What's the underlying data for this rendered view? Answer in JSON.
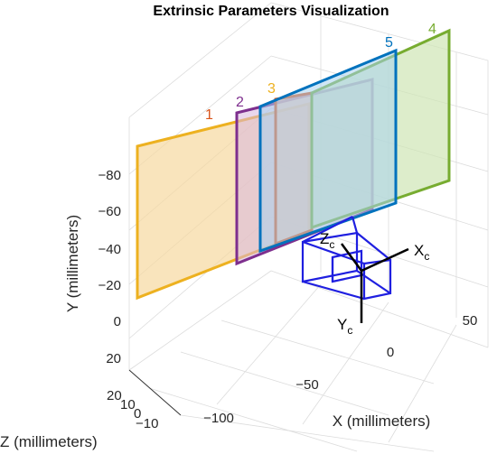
{
  "chart_data": {
    "type": "3d-plot",
    "title": "Extrinsic Parameters Visualization",
    "xlabel": "X (millimeters)",
    "ylabel": "Y (millimeters)",
    "zlabel": "Z (millimeters)",
    "x_ticks": [
      "−100",
      "−50",
      "0",
      "50"
    ],
    "y_ticks": [
      "−80",
      "−60",
      "−40",
      "−20",
      "0",
      "20"
    ],
    "z_ticks": [
      "20",
      "10",
      "0",
      "−10"
    ],
    "grid": true,
    "camera_axes": {
      "x": "X",
      "y": "Y",
      "z": "Z",
      "subscript": "c"
    },
    "planes": [
      {
        "id": "1",
        "color": "#EDB120",
        "fill": "#F7D9A0"
      },
      {
        "id": "2",
        "color": "#7E2F8E",
        "fill": "#D8B6DE"
      },
      {
        "id": "3",
        "color": "#D95319",
        "fill": "#F5C3A8"
      },
      {
        "id": "4",
        "color": "#77AC30",
        "fill": "#CFE5B5"
      },
      {
        "id": "5",
        "color": "#0072BD",
        "fill": "#A8D2EF"
      }
    ],
    "label_colors": {
      "1": "#D95319",
      "2": "#7E2F8E",
      "3": "#EDB120",
      "4": "#77AC30",
      "5": "#0072BD"
    },
    "camera_color": "#1F1FE0"
  }
}
